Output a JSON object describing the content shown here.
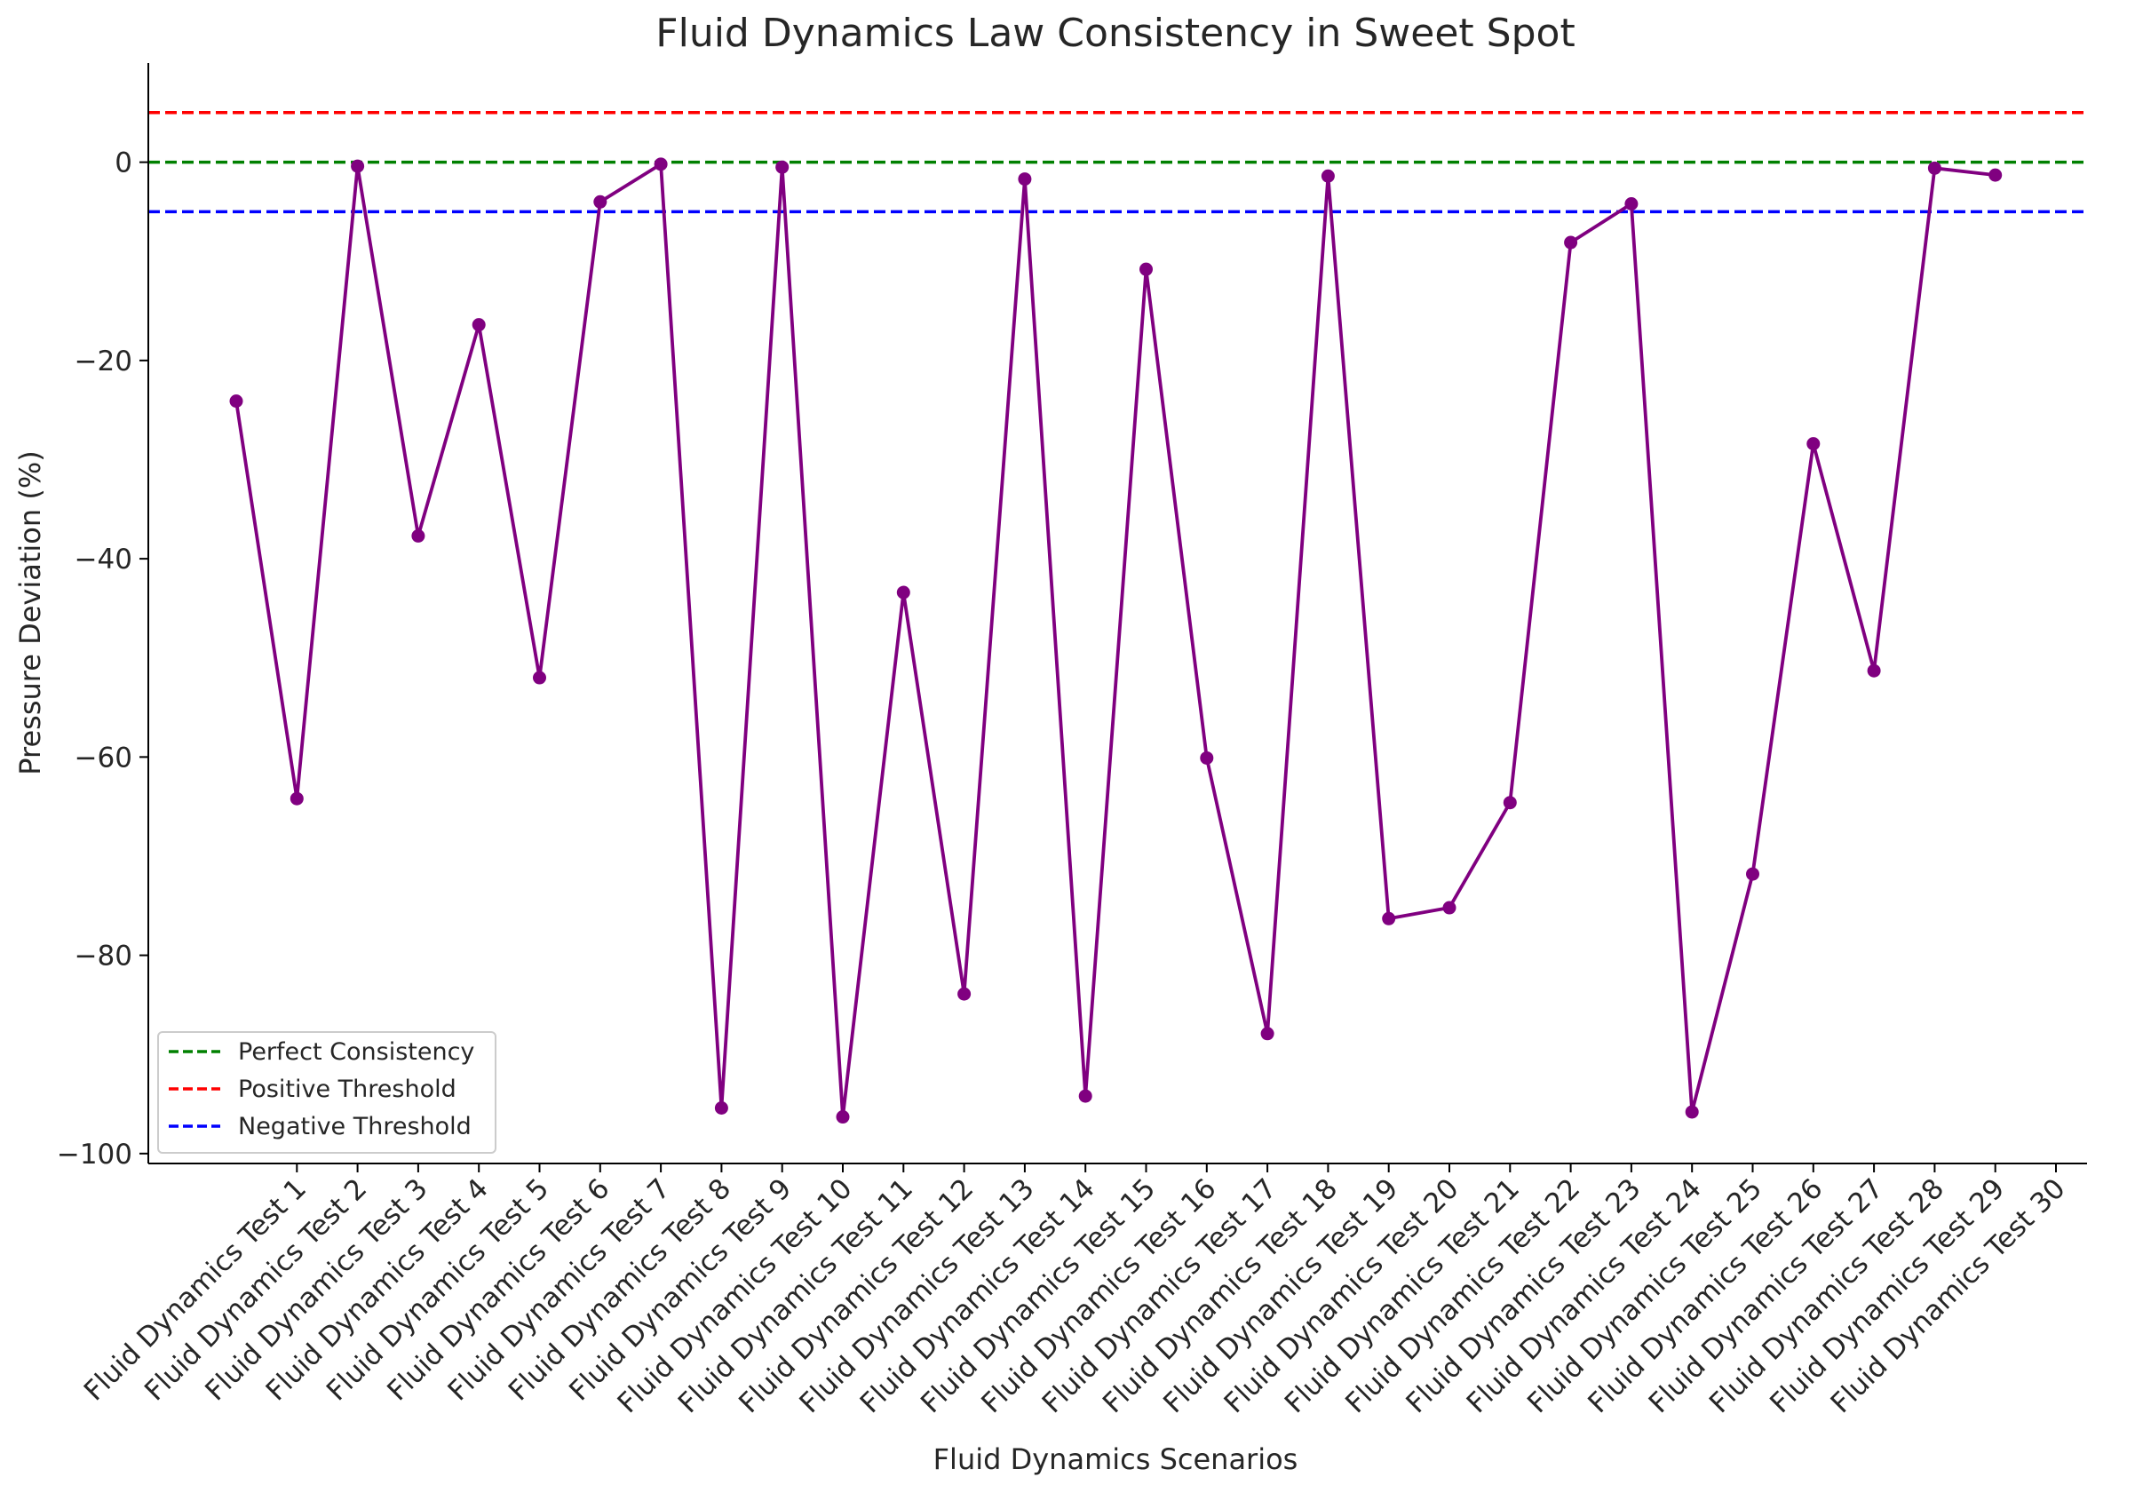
{
  "chart_data": {
    "type": "line",
    "title": "Fluid Dynamics Law Consistency in Sweet Spot",
    "xlabel": "Fluid Dynamics Scenarios",
    "ylabel": "Pressure Deviation (%)",
    "ylim": [
      -101,
      10
    ],
    "yticks": [
      0,
      -20,
      -40,
      -60,
      -80,
      -100
    ],
    "ytick_labels": [
      "0",
      "−20",
      "−40",
      "−60",
      "−80",
      "−100"
    ],
    "grid": false,
    "categories": [
      "Fluid Dynamics Test 1",
      "Fluid Dynamics Test 2",
      "Fluid Dynamics Test 3",
      "Fluid Dynamics Test 4",
      "Fluid Dynamics Test 5",
      "Fluid Dynamics Test 6",
      "Fluid Dynamics Test 7",
      "Fluid Dynamics Test 8",
      "Fluid Dynamics Test 9",
      "Fluid Dynamics Test 10",
      "Fluid Dynamics Test 11",
      "Fluid Dynamics Test 12",
      "Fluid Dynamics Test 13",
      "Fluid Dynamics Test 14",
      "Fluid Dynamics Test 15",
      "Fluid Dynamics Test 16",
      "Fluid Dynamics Test 17",
      "Fluid Dynamics Test 18",
      "Fluid Dynamics Test 19",
      "Fluid Dynamics Test 20",
      "Fluid Dynamics Test 21",
      "Fluid Dynamics Test 22",
      "Fluid Dynamics Test 23",
      "Fluid Dynamics Test 24",
      "Fluid Dynamics Test 25",
      "Fluid Dynamics Test 26",
      "Fluid Dynamics Test 27",
      "Fluid Dynamics Test 28",
      "Fluid Dynamics Test 29",
      "Fluid Dynamics Test 30"
    ],
    "series": [
      {
        "color": "#800080",
        "values": [
          -24.1,
          -64.2,
          -0.4,
          -37.7,
          -16.4,
          -52.0,
          -4.0,
          -0.2,
          -95.4,
          -0.5,
          -96.3,
          -43.4,
          -83.9,
          -1.7,
          -94.2,
          -10.8,
          -60.1,
          -87.9,
          -1.4,
          -76.3,
          -75.2,
          -64.6,
          -8.1,
          -4.2,
          -95.8,
          -71.8,
          -28.4,
          -51.3,
          -0.6,
          -1.3
        ]
      }
    ],
    "reference_lines": [
      {
        "label": "Perfect Consistency",
        "y": 0,
        "color": "#008000",
        "style": "dashed"
      },
      {
        "label": "Positive Threshold",
        "y": 5,
        "color": "#ff0000",
        "style": "dashed"
      },
      {
        "label": "Negative Threshold",
        "y": -5,
        "color": "#0000ff",
        "style": "dashed"
      }
    ],
    "legend_position": "lower-left"
  }
}
